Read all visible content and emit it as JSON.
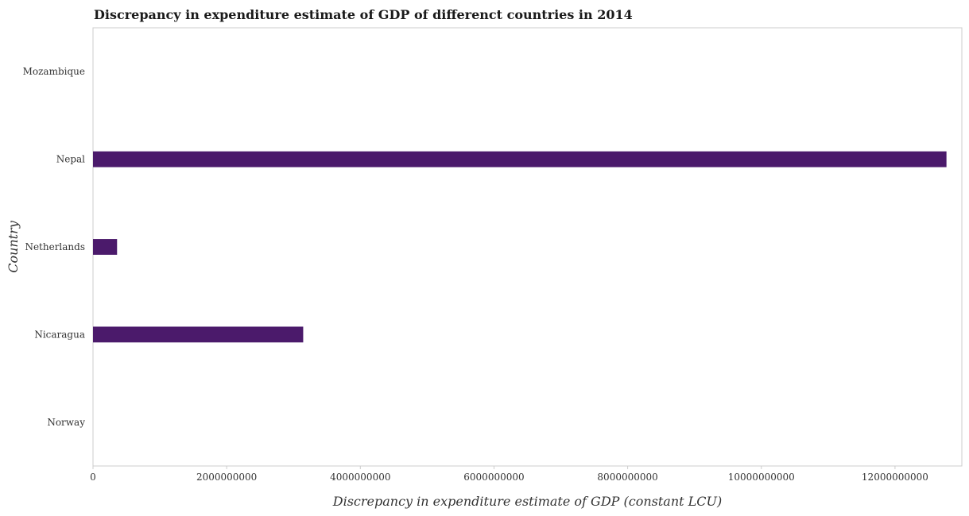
{
  "chart_data": {
    "type": "bar",
    "orientation": "horizontal",
    "title": "Discrepancy in expenditure estimate of GDP of differenct countries in 2014",
    "xlabel": "Discrepancy in expenditure estimate of GDP (constant LCU)",
    "ylabel": "Country",
    "categories": [
      "Mozambique",
      "Nepal",
      "Netherlands",
      "Nicaragua",
      "Norway"
    ],
    "values": [
      0,
      12770000000,
      360000000,
      3145000000,
      0
    ],
    "xlim": [
      0,
      13000000000
    ],
    "xticks": [
      0,
      2000000000,
      4000000000,
      6000000000,
      8000000000,
      10000000000,
      12000000000
    ],
    "xtick_labels": [
      "0",
      "2000000000",
      "4000000000",
      "6000000000",
      "8000000000",
      "10000000000",
      "12000000000"
    ],
    "bar_color": "#4b1a6b",
    "grid": false
  }
}
